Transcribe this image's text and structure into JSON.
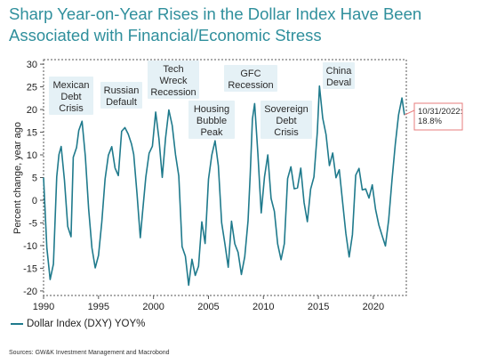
{
  "title": "Sharp Year-on-Year Rises in the Dollar Index Have Been Associated with Financial/Economic Stress",
  "source": "Sources: GW&K Investment Management and Macrobond",
  "colors": {
    "title": "#2f8f9c",
    "series": "#1f7a8c",
    "annotation_fill": "#e5f1f6",
    "callout_border": "#e77c7c"
  },
  "chart_data": {
    "type": "line",
    "title": "Sharp Year-on-Year Rises in the Dollar Index Have Been Associated with Financial/Economic Stress",
    "ylabel": "Percent change, year ago",
    "xlabel": "",
    "xlim": [
      1990,
      2023
    ],
    "ylim": [
      -21,
      31
    ],
    "xticks": [
      "1990",
      "1995",
      "2000",
      "2005",
      "2010",
      "2015",
      "2020"
    ],
    "yticks": [
      "-20",
      "-15",
      "-10",
      "-5",
      "0",
      "5",
      "10",
      "15",
      "20",
      "25",
      "30"
    ],
    "grid": false,
    "legend_position": "bottom-left",
    "series": [
      {
        "name": "Dollar Index (DXY) YOY%",
        "x": [
          1990.0,
          1990.3,
          1990.6,
          1990.9,
          1991.2,
          1991.4,
          1991.6,
          1991.9,
          1992.2,
          1992.5,
          1992.7,
          1993.0,
          1993.2,
          1993.5,
          1993.8,
          1994.1,
          1994.4,
          1994.7,
          1995.0,
          1995.3,
          1995.6,
          1995.9,
          1996.2,
          1996.5,
          1996.8,
          1997.1,
          1997.4,
          1997.7,
          1998.0,
          1998.2,
          1998.5,
          1998.8,
          1999.0,
          1999.3,
          1999.6,
          1999.9,
          2000.2,
          2000.5,
          2000.8,
          2001.1,
          2001.4,
          2001.7,
          2002.0,
          2002.3,
          2002.6,
          2002.9,
          2003.2,
          2003.5,
          2003.8,
          2004.1,
          2004.4,
          2004.7,
          2005.0,
          2005.3,
          2005.6,
          2005.9,
          2006.2,
          2006.5,
          2006.8,
          2007.1,
          2007.4,
          2007.7,
          2008.0,
          2008.3,
          2008.6,
          2008.8,
          2009.0,
          2009.2,
          2009.5,
          2009.8,
          2010.1,
          2010.4,
          2010.7,
          2011.0,
          2011.3,
          2011.6,
          2011.9,
          2012.2,
          2012.5,
          2012.8,
          2013.1,
          2013.4,
          2013.7,
          2014.0,
          2014.3,
          2014.6,
          2014.9,
          2015.1,
          2015.4,
          2015.7,
          2016.0,
          2016.3,
          2016.6,
          2016.9,
          2017.2,
          2017.5,
          2017.8,
          2018.1,
          2018.4,
          2018.7,
          2019.0,
          2019.3,
          2019.6,
          2019.9,
          2020.2,
          2020.5,
          2020.8,
          2021.1,
          2021.4,
          2021.7,
          2022.0,
          2022.3,
          2022.6,
          2022.83
        ],
        "y": [
          5,
          -10,
          -18,
          -14,
          5,
          10,
          12,
          4,
          -6,
          -8,
          10,
          12,
          15,
          18,
          10,
          -2,
          -10,
          -15,
          -12,
          -5,
          5,
          10,
          12,
          7,
          5,
          15,
          16,
          14,
          12,
          10,
          2,
          -8,
          -3,
          5,
          10,
          12,
          20,
          14,
          5,
          14,
          20,
          17,
          10,
          5,
          -10,
          -12,
          -19,
          -13,
          -17,
          -15,
          -5,
          -10,
          5,
          10,
          13,
          8,
          -5,
          -10,
          -15,
          -5,
          -10,
          -12,
          -16,
          -13,
          -5,
          5,
          18,
          21,
          10,
          -3,
          5,
          10,
          0,
          -3,
          -10,
          -13,
          -10,
          5,
          7,
          2,
          3,
          7,
          -1,
          -5,
          2,
          5,
          15,
          25,
          18,
          15,
          8,
          10,
          5,
          7,
          0,
          -7,
          -12,
          -8,
          5,
          7,
          2,
          3,
          0,
          3,
          -2,
          -5,
          -8,
          -10,
          -4,
          5,
          12,
          19,
          22,
          18.8
        ]
      }
    ],
    "annotations": [
      {
        "lines": [
          "Mexican",
          "Debt",
          "Crisis"
        ]
      },
      {
        "lines": [
          "Russian",
          "Default"
        ]
      },
      {
        "lines": [
          "Tech",
          "Wreck",
          "Recession"
        ]
      },
      {
        "lines": [
          "Housing",
          "Bubble",
          "Peak"
        ]
      },
      {
        "lines": [
          "GFC",
          "Recession"
        ]
      },
      {
        "lines": [
          "Sovereign",
          "Debt",
          "Crisis"
        ]
      },
      {
        "lines": [
          "China",
          "Deval"
        ]
      }
    ],
    "callout": {
      "lines": [
        "10/31/2022:",
        "18.8%"
      ],
      "x": 2022.83,
      "y": 18.8
    }
  }
}
